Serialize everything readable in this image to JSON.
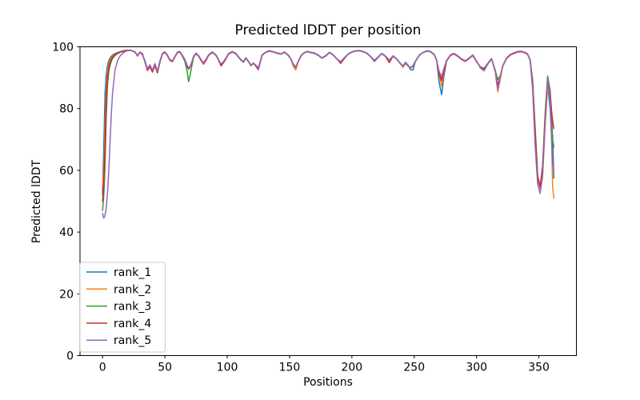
{
  "chart_data": {
    "type": "line",
    "title": "Predicted lDDT per position",
    "xlabel": "Positions",
    "ylabel": "Predicted lDDT",
    "xlim": [
      -18.1,
      380.1
    ],
    "ylim": [
      0,
      100
    ],
    "xticks": [
      0,
      50,
      100,
      150,
      200,
      250,
      300,
      350
    ],
    "yticks": [
      0,
      20,
      40,
      60,
      80,
      100
    ],
    "grid": false,
    "legend_position": "lower left",
    "line_width": 1.5,
    "x": [
      0,
      1,
      2,
      3,
      4,
      5,
      6,
      7,
      8,
      10,
      12,
      14,
      17,
      20,
      23,
      26,
      28,
      30,
      32,
      34,
      36,
      38,
      40,
      42,
      44,
      46,
      48,
      50,
      52,
      54,
      56,
      58,
      60,
      62,
      64,
      66,
      68,
      69,
      70,
      71,
      73,
      75,
      77,
      79,
      81,
      83,
      85,
      88,
      91,
      93,
      95,
      97,
      99,
      101,
      104,
      107,
      109,
      111,
      113,
      115,
      117,
      119,
      121,
      123,
      125,
      128,
      131,
      134,
      137,
      140,
      143,
      146,
      149,
      151,
      153,
      155,
      157,
      159,
      161,
      164,
      167,
      170,
      173,
      176,
      179,
      182,
      185,
      188,
      191,
      194,
      197,
      200,
      203,
      206,
      209,
      212,
      215,
      218,
      221,
      224,
      227,
      230,
      233,
      236,
      239,
      241,
      243,
      245,
      247,
      249,
      251,
      254,
      257,
      260,
      263,
      266,
      268,
      270,
      272,
      274,
      276,
      279,
      282,
      285,
      288,
      291,
      294,
      297,
      300,
      303,
      306,
      309,
      312,
      315,
      317,
      319,
      321,
      324,
      327,
      330,
      333,
      336,
      339,
      341,
      343,
      345,
      347,
      349,
      351,
      353,
      355,
      357,
      359,
      360,
      361,
      362
    ],
    "series": [
      {
        "name": "rank_1",
        "color": "#1f77b4",
        "values": [
          52,
          68,
          85,
          91,
          94,
          95.5,
          96.3,
          96.9,
          97.3,
          97.8,
          98.1,
          98.4,
          98.7,
          98.9,
          98.8,
          98.3,
          97.2,
          98.3,
          97.5,
          95.5,
          92.8,
          94,
          92.2,
          94.3,
          92,
          95.3,
          97.8,
          98.3,
          97.3,
          95.8,
          95.3,
          96.8,
          98.2,
          98.4,
          97.2,
          95.8,
          93.8,
          93,
          93.5,
          94.3,
          96.8,
          97.9,
          97.1,
          95.8,
          94.7,
          95.9,
          97.3,
          98.3,
          97.3,
          95.8,
          94.3,
          95.1,
          96.3,
          97.7,
          98.4,
          97.8,
          96.7,
          95.8,
          95.1,
          96.4,
          95.3,
          94,
          94.7,
          94,
          93,
          97.4,
          98.3,
          98.7,
          98.4,
          98,
          97.7,
          98.3,
          97.3,
          96.1,
          94.3,
          93.4,
          95.3,
          97,
          97.9,
          98.5,
          98.2,
          98,
          97.3,
          96.4,
          97.1,
          98.2,
          97.4,
          96.1,
          95.2,
          96.5,
          97.7,
          98.4,
          98.7,
          98.8,
          98.5,
          98,
          96.9,
          95.6,
          96.7,
          97.9,
          97,
          95.7,
          97.1,
          96.1,
          94.6,
          93.8,
          95,
          94.1,
          92.6,
          92.5,
          95.4,
          97.3,
          98.2,
          98.7,
          98.5,
          97.6,
          95.7,
          88.5,
          84.5,
          91,
          95.5,
          97.3,
          97.8,
          97,
          96,
          95.4,
          96.3,
          97.3,
          95.3,
          93.5,
          93,
          94.6,
          96.2,
          92.2,
          87.6,
          90.2,
          93.8,
          96.3,
          97.4,
          98,
          98.4,
          98.5,
          98.1,
          97.6,
          95.8,
          87.5,
          70.5,
          57,
          54.5,
          61,
          77,
          88.2,
          80,
          72.5,
          71.5,
          57.5
        ]
      },
      {
        "name": "rank_2",
        "color": "#ff7f0e",
        "values": [
          55,
          60,
          74,
          86,
          92,
          94.2,
          95.5,
          96.3,
          96.9,
          97.5,
          97.9,
          98.2,
          98.6,
          98.9,
          98.8,
          98.4,
          97.2,
          98.3,
          97.5,
          95.3,
          92.5,
          93.8,
          92,
          94.1,
          91.8,
          95,
          97.7,
          98.2,
          97.2,
          95.6,
          95.2,
          96.7,
          98.1,
          98.3,
          97.1,
          95.6,
          93.5,
          92.7,
          93.3,
          94.1,
          96.7,
          97.8,
          97,
          95.7,
          94.5,
          95.7,
          97.2,
          98.2,
          97.2,
          95.7,
          94.2,
          95,
          96.2,
          97.6,
          98.3,
          97.7,
          96.6,
          95.7,
          95,
          96.3,
          95.2,
          93.9,
          94.6,
          93.9,
          92.9,
          97.3,
          98.2,
          98.6,
          98.3,
          97.9,
          97.6,
          98.2,
          97.2,
          96,
          93.7,
          92.5,
          95.2,
          96.8,
          97.9,
          98.5,
          98.1,
          97.9,
          97.2,
          96.3,
          97,
          98.1,
          97.3,
          96,
          95.1,
          96.4,
          97.6,
          98.3,
          98.6,
          98.7,
          98.4,
          97.9,
          96.8,
          95.5,
          96.6,
          97.8,
          96.9,
          95.6,
          97,
          96,
          94.5,
          93.3,
          94.8,
          94,
          93,
          93.8,
          95.2,
          97.2,
          98.1,
          98.6,
          98.4,
          97.5,
          95.6,
          91,
          87.3,
          92,
          95.4,
          97.2,
          97.7,
          96.9,
          95.9,
          95.3,
          96.2,
          97.2,
          95.2,
          93.4,
          92.8,
          94.5,
          96.1,
          91.8,
          85.4,
          89.4,
          93.7,
          96.2,
          97.3,
          97.9,
          98.3,
          98.4,
          98,
          97.5,
          95.7,
          88.5,
          73,
          57.5,
          54,
          58.5,
          74,
          86.5,
          84,
          74,
          55,
          51
        ]
      },
      {
        "name": "rank_3",
        "color": "#2ca02c",
        "values": [
          47,
          52,
          62,
          78,
          88,
          92,
          94,
          95.3,
          96.2,
          97.2,
          97.8,
          98.2,
          98.6,
          98.8,
          98.8,
          98.3,
          97.1,
          98.2,
          97.4,
          95.4,
          92.6,
          93.9,
          92.1,
          93.8,
          91.5,
          95,
          97.7,
          98.2,
          97.2,
          95.7,
          95.2,
          96.7,
          98.2,
          98.4,
          97,
          95.3,
          91.8,
          88.7,
          90.3,
          92.6,
          96.5,
          97.8,
          97,
          95.7,
          94.6,
          95.8,
          97.2,
          98.2,
          97.2,
          95.7,
          94.2,
          95,
          96.2,
          97.6,
          98.3,
          97.7,
          96.6,
          95.7,
          95,
          96.3,
          95.2,
          93.9,
          94.6,
          93.9,
          92.9,
          97.3,
          98.2,
          98.6,
          98.3,
          97.9,
          97.6,
          98.2,
          97.2,
          96,
          94.2,
          93.2,
          95.2,
          96.9,
          97.8,
          98.4,
          98.1,
          97.9,
          97.2,
          96.3,
          97,
          98.1,
          97.3,
          96,
          95.1,
          96.4,
          97.6,
          98.3,
          98.6,
          98.7,
          98.4,
          97.9,
          96.8,
          95.5,
          96.6,
          97.8,
          96.9,
          95.6,
          97,
          96,
          94.5,
          93.7,
          94.6,
          93.8,
          93.2,
          93.9,
          95.3,
          97.2,
          98.1,
          98.6,
          98.4,
          97.5,
          95.6,
          91.7,
          89.6,
          93,
          95.5,
          97.3,
          97.8,
          97,
          96,
          95.4,
          96.3,
          97.3,
          95.3,
          93.5,
          92.9,
          94.6,
          96.2,
          92.4,
          89.4,
          90.6,
          93.8,
          96.3,
          97.4,
          98,
          98.4,
          98.5,
          98.1,
          97.6,
          95.8,
          89,
          74,
          58.5,
          54.5,
          61.5,
          78.5,
          90.5,
          86,
          80,
          70,
          67.5
        ]
      },
      {
        "name": "rank_4",
        "color": "#d62728",
        "values": [
          50,
          56,
          68,
          83,
          90,
          93,
          94.8,
          95.8,
          96.6,
          97.4,
          97.9,
          98.3,
          98.7,
          98.9,
          98.8,
          98.3,
          97,
          98.2,
          97.8,
          95,
          92.3,
          93.5,
          91.8,
          94,
          91.8,
          95.1,
          97.7,
          98.2,
          97.2,
          95.6,
          95.2,
          96.7,
          98.1,
          98.3,
          97.1,
          95.7,
          93.6,
          92.8,
          93.4,
          94.2,
          96.7,
          97.8,
          97,
          95.6,
          94.4,
          95.6,
          97.2,
          98.2,
          97.3,
          95.8,
          93.8,
          94.8,
          96.1,
          97.6,
          98.4,
          97.8,
          96.7,
          95.8,
          95.1,
          96.4,
          95.3,
          94,
          94.7,
          94,
          93,
          97.4,
          98.3,
          98.7,
          98.4,
          98,
          97.7,
          98.3,
          97.3,
          96.1,
          94.4,
          93.5,
          95.3,
          97,
          97.9,
          98.5,
          98.2,
          98,
          97.3,
          96.4,
          97.1,
          98.2,
          97.4,
          96.1,
          94.6,
          96.2,
          97.6,
          98.3,
          98.6,
          98.7,
          98.4,
          97.9,
          96.8,
          95.5,
          96.6,
          97.8,
          96.8,
          94.9,
          96.9,
          96,
          94.5,
          93.7,
          94.9,
          94,
          93.2,
          93.9,
          95.3,
          97.2,
          98.1,
          98.6,
          98.4,
          97.5,
          95.6,
          91,
          89,
          92.3,
          95.4,
          97.2,
          97.7,
          96.9,
          95.9,
          95.3,
          96.2,
          97.2,
          95.2,
          93.4,
          92.8,
          94.5,
          96.1,
          92.3,
          87.7,
          90.3,
          93.7,
          96.2,
          97.3,
          97.9,
          98.3,
          98.4,
          98,
          97.5,
          95.7,
          88,
          72.5,
          58,
          54.8,
          60.5,
          76.5,
          89,
          85,
          80,
          76,
          73.5
        ]
      },
      {
        "name": "rank_5",
        "color": "#9467bd",
        "values": [
          46,
          44.5,
          45.5,
          48,
          53,
          60,
          69,
          78,
          85,
          92.5,
          95.5,
          97,
          98.2,
          98.8,
          98.8,
          98.2,
          97.1,
          98.3,
          97.4,
          95.2,
          92.9,
          94.2,
          92.4,
          94.6,
          92.1,
          95.4,
          97.9,
          98.4,
          97.4,
          95.9,
          95.4,
          96.9,
          98.3,
          98.5,
          97.3,
          95.9,
          93.9,
          93.2,
          93.6,
          94.4,
          96.9,
          98,
          97.2,
          95.9,
          94.8,
          96,
          97.4,
          98.4,
          97.4,
          95.9,
          94.4,
          95.2,
          96.4,
          97.8,
          98.5,
          97.9,
          96.8,
          95.9,
          95.2,
          96.5,
          95.4,
          94.1,
          94.8,
          93.6,
          92.5,
          97.2,
          98.2,
          98.6,
          98.3,
          97.9,
          97.6,
          98.2,
          97.2,
          96,
          94.3,
          93.3,
          95.2,
          96.9,
          97.8,
          98.4,
          98.1,
          97.9,
          97.2,
          96.3,
          97,
          98.1,
          97.3,
          96,
          95.1,
          96.4,
          97.6,
          98.3,
          98.6,
          98.7,
          98.4,
          97.9,
          96.8,
          95.2,
          96.5,
          97.8,
          96.9,
          95.6,
          97,
          96,
          94.5,
          93.7,
          94.9,
          94,
          93.2,
          93.9,
          95.3,
          97.2,
          98.1,
          98.6,
          98.4,
          97.5,
          95.6,
          92,
          90.3,
          93.3,
          95.6,
          97.4,
          97.9,
          97.1,
          96.1,
          95.5,
          96.4,
          97.4,
          95.4,
          93.2,
          92.2,
          94.4,
          96,
          92.3,
          86.2,
          90.4,
          93.9,
          96.4,
          97.5,
          98.1,
          98.5,
          98.6,
          98.2,
          97.7,
          95.5,
          86,
          68,
          55.5,
          52.5,
          58,
          75.5,
          89.5,
          83,
          72,
          62,
          60
        ]
      }
    ]
  }
}
